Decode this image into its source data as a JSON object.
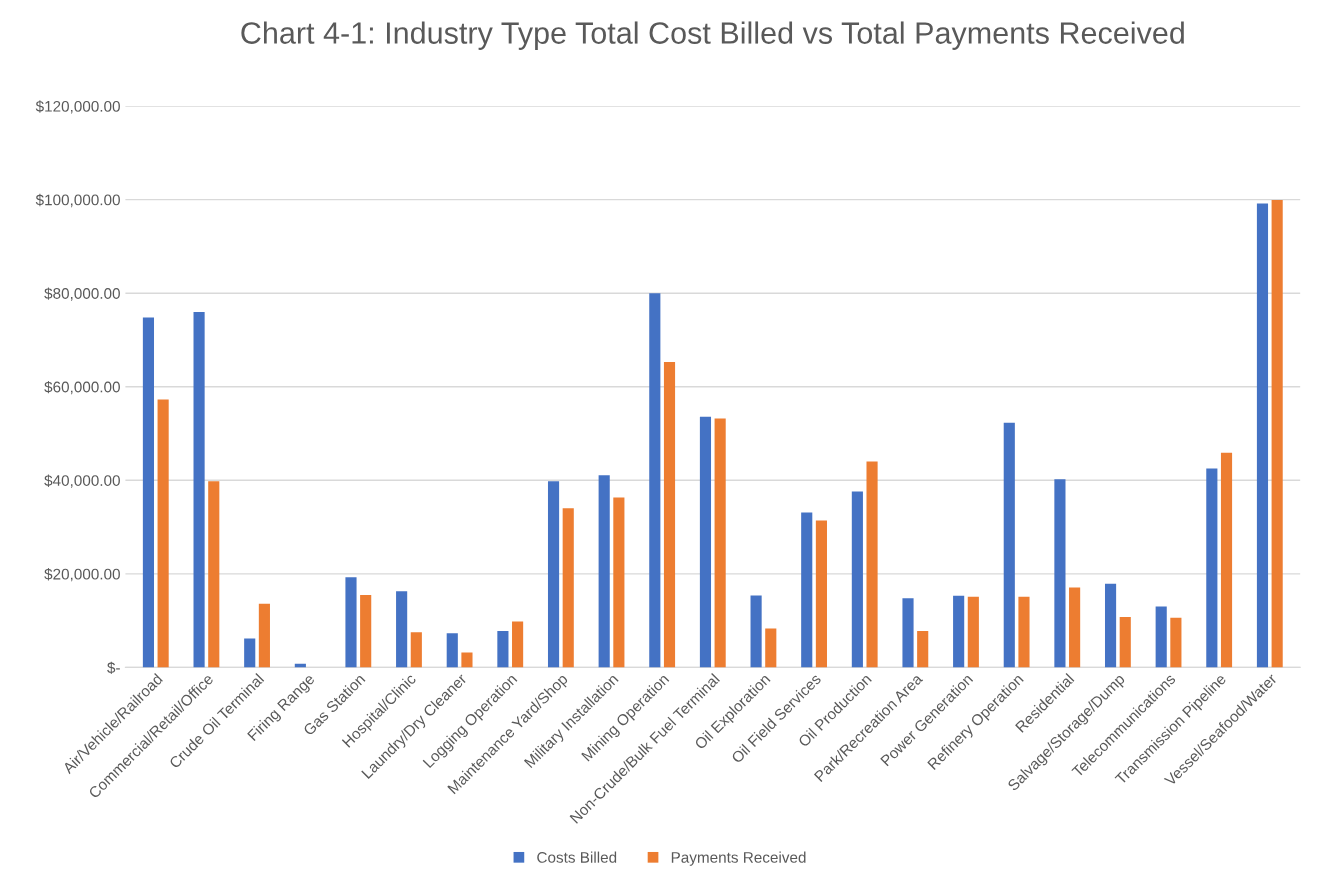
{
  "chart_data": {
    "type": "bar",
    "title": "Chart 4-1: Industry Type Total Cost Billed vs Total Payments Received",
    "categories": [
      "Air/Vehicle/Railroad",
      "Commercial/Retail/Office",
      "Crude Oil Terminal",
      "Firing Range",
      "Gas Station",
      "Hospital/Clinic",
      "Laundry/Dry Cleaner",
      "Logging Operation",
      "Maintenance Yard/Shop",
      "Military Installation",
      "Mining Operation",
      "Non-Crude/Bulk Fuel Terminal",
      "Oil Exploration",
      "Oil Field Services",
      "Oil Production",
      "Park/Recreation Area",
      "Power Generation",
      "Refinery Operation",
      "Residential",
      "Salvage/Storage/Dump",
      "Telecommunications",
      "Transmission Pipeline",
      "Vessel/Seafood/Water"
    ],
    "series": [
      {
        "name": "Costs Billed",
        "color": "#4472c4",
        "values": [
          74800,
          76000,
          6200,
          800,
          19300,
          16300,
          7300,
          7800,
          39800,
          41100,
          80000,
          53600,
          15400,
          33100,
          37600,
          14800,
          15300,
          52300,
          40200,
          17900,
          13000,
          42500,
          99200
        ]
      },
      {
        "name": "Payments Received",
        "color": "#ed7d31",
        "values": [
          57300,
          39800,
          13600,
          0,
          15500,
          7500,
          3200,
          9800,
          34000,
          36300,
          65300,
          53200,
          8300,
          31400,
          44000,
          7800,
          15100,
          15100,
          17100,
          10800,
          10600,
          45900,
          99900
        ]
      }
    ],
    "ylim": [
      0,
      120000
    ],
    "yticks": [
      {
        "value": 0,
        "label": "$-"
      },
      {
        "value": 20000,
        "label": "$20,000.00"
      },
      {
        "value": 40000,
        "label": "$40,000.00"
      },
      {
        "value": 60000,
        "label": "$60,000.00"
      },
      {
        "value": 80000,
        "label": "$80,000.00"
      },
      {
        "value": 100000,
        "label": "$100,000.00"
      },
      {
        "value": 120000,
        "label": "$120,000.00"
      }
    ],
    "grid": "y",
    "legend": "bottom"
  }
}
